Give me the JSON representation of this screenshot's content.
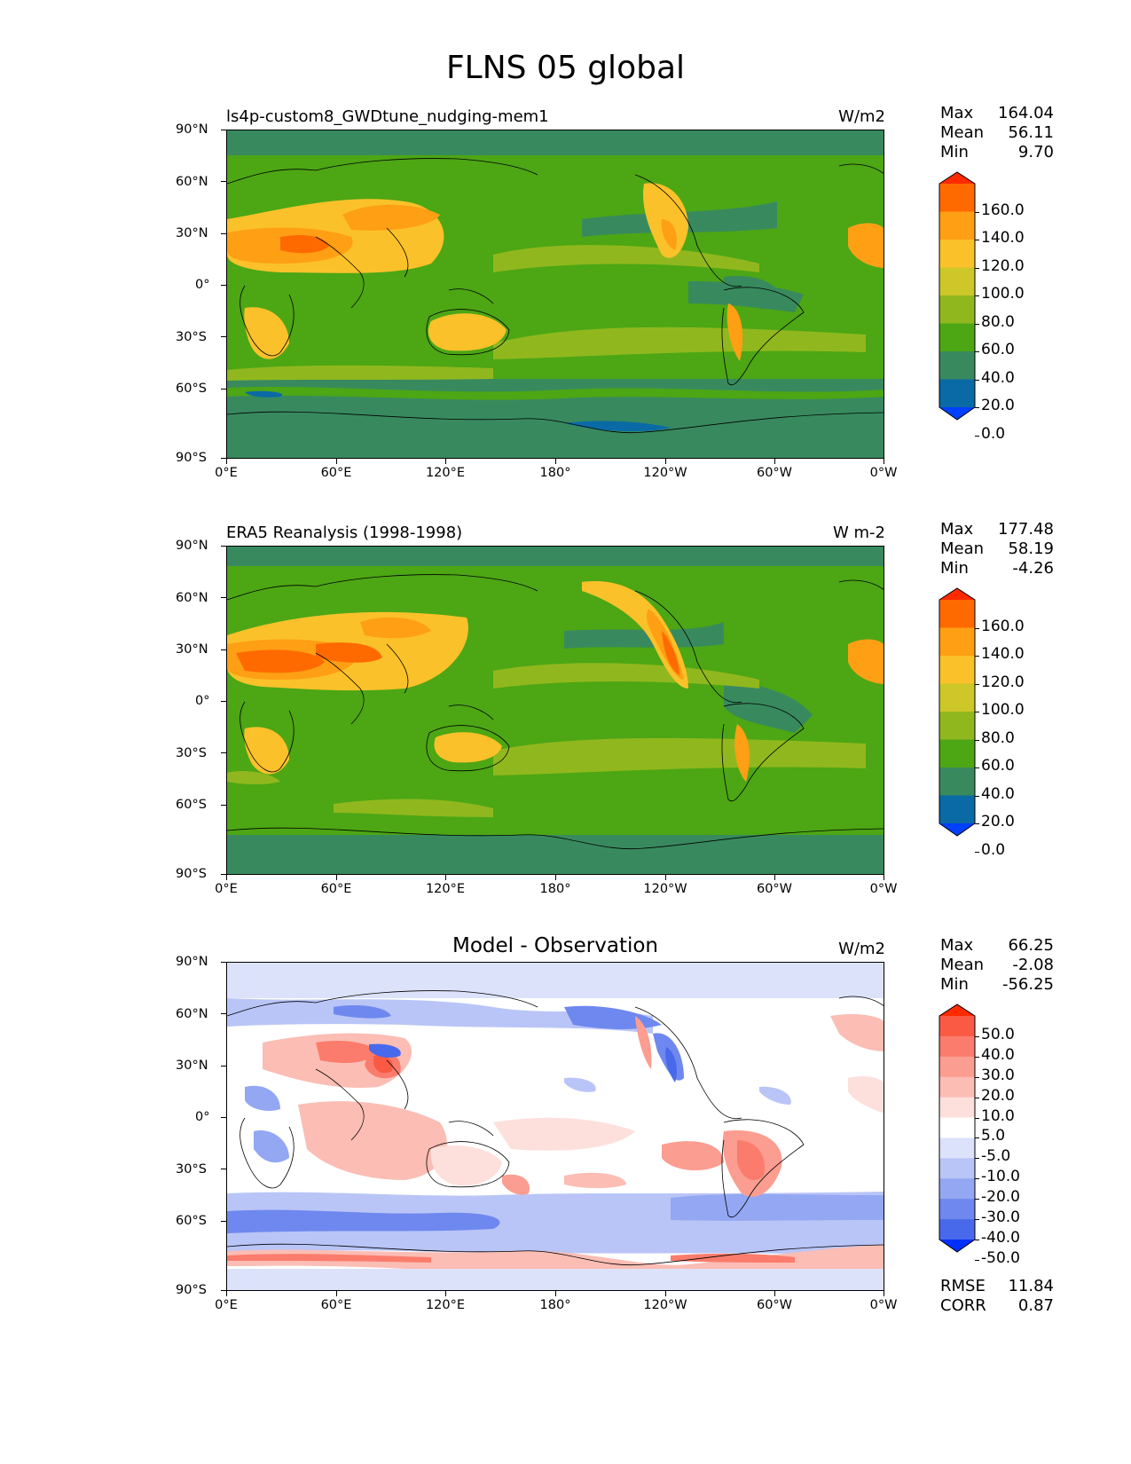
{
  "title": "FLNS 05 global",
  "axes": {
    "y_labels": [
      "90°N",
      "60°N",
      "30°N",
      "0°",
      "30°S",
      "60°S",
      "90°S"
    ],
    "x_labels": [
      "0°E",
      "60°E",
      "120°E",
      "180°",
      "120°W",
      "60°W",
      "0°W"
    ]
  },
  "panels": [
    {
      "title": "ls4p-custom8_GWDtune_nudging-mem1",
      "units": "W/m2",
      "stats": {
        "max_label": "Max",
        "max": "164.04",
        "mean_label": "Mean",
        "mean": "56.11",
        "min_label": "Min",
        "min": "9.70"
      },
      "colorbar": {
        "labels": [
          "160.0",
          "140.0",
          "120.0",
          "100.0",
          "80.0",
          "60.0",
          "40.0",
          "20.0",
          "0.0"
        ],
        "colors": [
          "#ff2a00",
          "#ff6a00",
          "#ff9f14",
          "#fbc12a",
          "#cdc72a",
          "#90b81e",
          "#4da614",
          "#388a5e",
          "#0a6aa6",
          "#0040ff"
        ]
      }
    },
    {
      "title": "ERA5 Reanalysis (1998-1998)",
      "units": "W m-2",
      "stats": {
        "max_label": "Max",
        "max": "177.48",
        "mean_label": "Mean",
        "mean": "58.19",
        "min_label": "Min",
        "min": "-4.26"
      },
      "colorbar": {
        "labels": [
          "160.0",
          "140.0",
          "120.0",
          "100.0",
          "80.0",
          "60.0",
          "40.0",
          "20.0",
          "0.0"
        ],
        "colors": [
          "#ff2a00",
          "#ff6a00",
          "#ff9f14",
          "#fbc12a",
          "#cdc72a",
          "#90b81e",
          "#4da614",
          "#388a5e",
          "#0a6aa6",
          "#0040ff"
        ]
      }
    },
    {
      "title": "Model - Observation",
      "units": "W/m2",
      "stats": {
        "max_label": "Max",
        "max": "66.25",
        "mean_label": "Mean",
        "mean": "-2.08",
        "min_label": "Min",
        "min": "-56.25"
      },
      "colorbar": {
        "labels": [
          "50.0",
          "40.0",
          "30.0",
          "20.0",
          "10.0",
          "5.0",
          "-5.0",
          "-10.0",
          "-20.0",
          "-30.0",
          "-40.0",
          "-50.0"
        ],
        "colors": [
          "#ff2a00",
          "#fa5a44",
          "#fb7c6c",
          "#fb9d90",
          "#fbbdb4",
          "#fde0dc",
          "#ffffff",
          "#dde2fb",
          "#b9c5f7",
          "#94a7f3",
          "#6f88ef",
          "#4969eb",
          "#0030ff"
        ]
      },
      "extra": {
        "rmse_label": "RMSE",
        "rmse": "11.84",
        "corr_label": "CORR",
        "corr": "0.87"
      }
    }
  ]
}
